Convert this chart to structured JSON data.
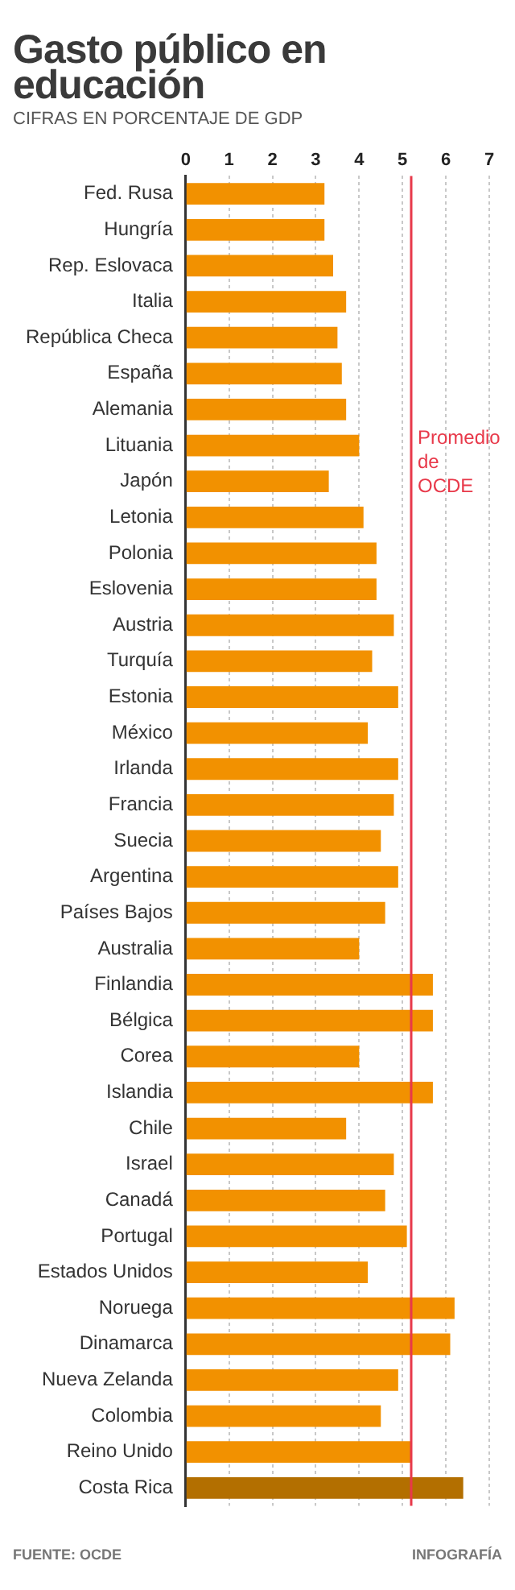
{
  "chart_data": {
    "type": "bar",
    "orientation": "horizontal",
    "title": "Gasto público en educación",
    "subtitle": "CIFRAS EN PORCENTAJE DE GDP",
    "categories": [
      "Fed. Rusa",
      "Hungría",
      "Rep. Eslovaca",
      "Italia",
      "República Checa",
      "España",
      "Alemania",
      "Lituania",
      "Japón",
      "Letonia",
      "Polonia",
      "Eslovenia",
      "Austria",
      "Turquía",
      "Estonia",
      "México",
      "Irlanda",
      "Francia",
      "Suecia",
      "Argentina",
      "Países Bajos",
      "Australia",
      "Finlandia",
      "Bélgica",
      "Corea",
      "Islandia",
      "Chile",
      "Israel",
      "Canadá",
      "Portugal",
      "Estados Unidos",
      "Noruega",
      "Dinamarca",
      "Nueva Zelanda",
      "Colombia",
      "Reino Unido",
      "Costa Rica"
    ],
    "values": [
      3.2,
      3.2,
      3.4,
      3.7,
      3.5,
      3.6,
      3.7,
      4.0,
      3.3,
      4.1,
      4.4,
      4.4,
      4.8,
      4.3,
      4.9,
      4.2,
      4.9,
      4.8,
      4.5,
      4.9,
      4.6,
      4.0,
      5.7,
      5.7,
      4.0,
      5.7,
      3.7,
      4.8,
      4.6,
      5.1,
      4.2,
      6.2,
      6.1,
      4.9,
      4.5,
      5.2,
      6.4
    ],
    "colors": [
      "#f29100",
      "#f29100",
      "#f29100",
      "#f29100",
      "#f29100",
      "#f29100",
      "#f29100",
      "#f29100",
      "#f29100",
      "#f29100",
      "#f29100",
      "#f29100",
      "#f29100",
      "#f29100",
      "#f29100",
      "#f29100",
      "#f29100",
      "#f29100",
      "#f29100",
      "#f29100",
      "#f29100",
      "#f29100",
      "#f29100",
      "#f29100",
      "#f29100",
      "#f29100",
      "#f29100",
      "#f29100",
      "#f29100",
      "#f29100",
      "#f29100",
      "#f29100",
      "#f29100",
      "#f29100",
      "#f29100",
      "#f29100",
      "#b36f00"
    ],
    "xlim": [
      0,
      7
    ],
    "xticks": [
      0,
      1,
      2,
      3,
      4,
      5,
      6,
      7
    ],
    "grid": "x",
    "ref_lines": [
      {
        "axis": "x",
        "value": 5.2,
        "label": "Promedio de OCDE",
        "color": "#e8394a"
      }
    ],
    "annotations": [
      "FUENTE: OCDE",
      "INFOGRAFÍA"
    ]
  }
}
